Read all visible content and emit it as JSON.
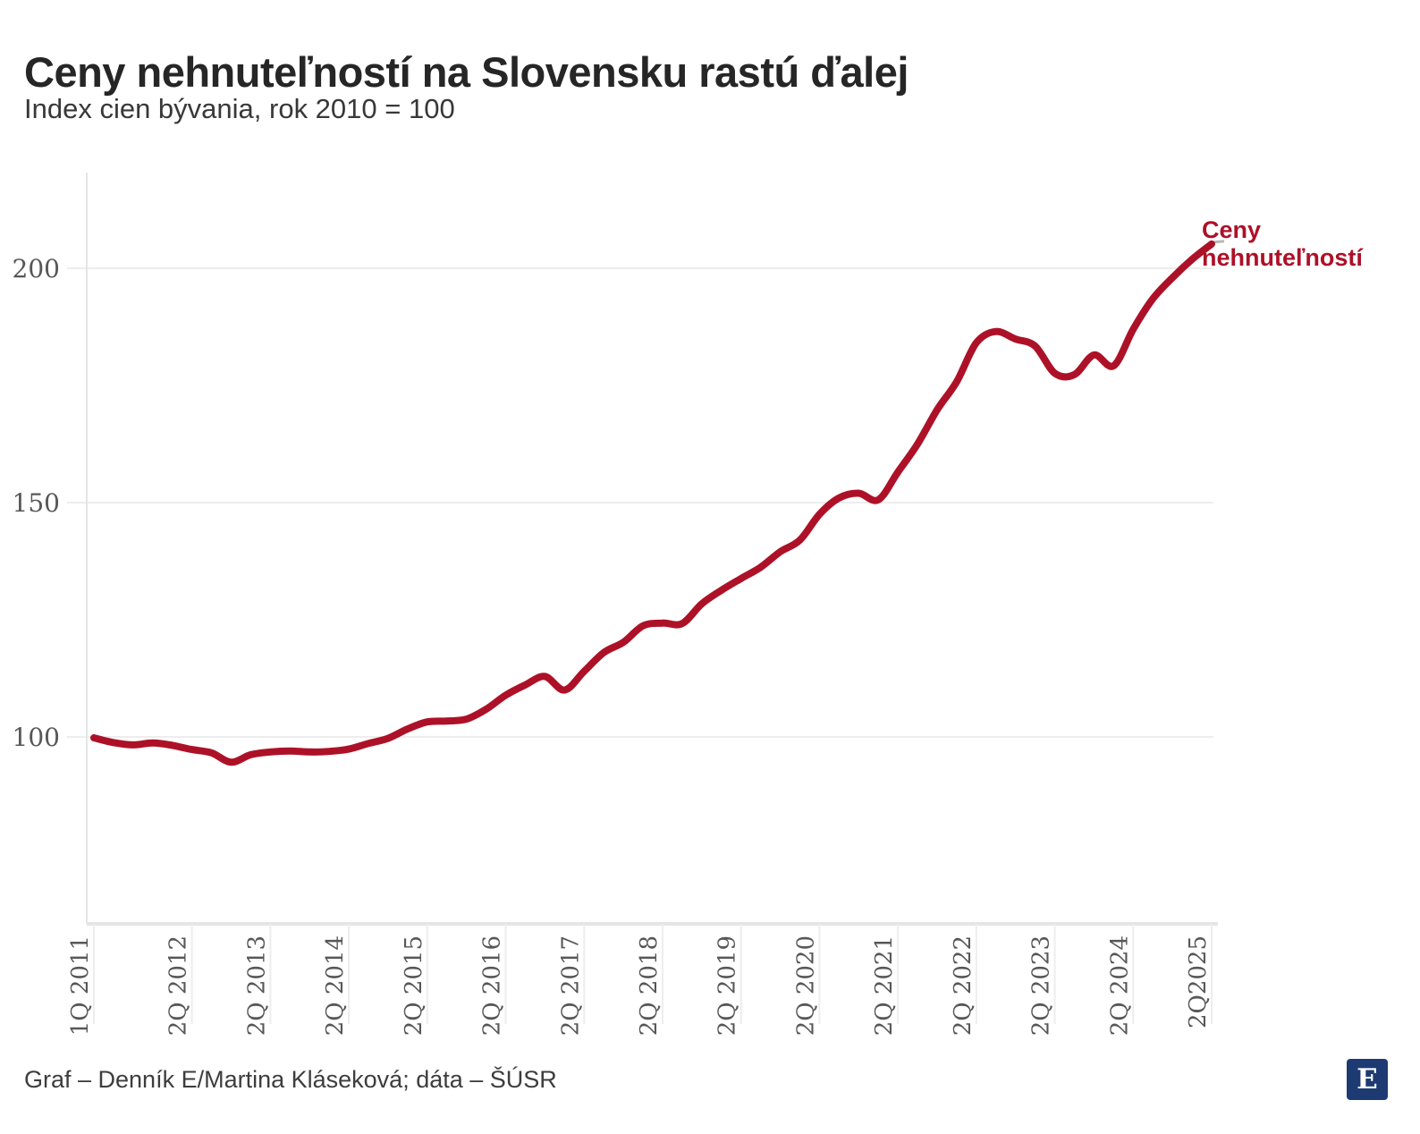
{
  "header": {
    "title": "Ceny nehnuteľností na Slovensku rastú ďalej",
    "subtitle": "Index cien bývania, rok 2010 = 100"
  },
  "annotation": {
    "line1": "Ceny",
    "line2": "nehnuteľností"
  },
  "chart_data": {
    "type": "line",
    "title": "Ceny nehnuteľností na Slovensku rastú ďalej",
    "subtitle": "Index cien bývania, rok 2010 = 100",
    "series_label": "Ceny nehnuteľností",
    "x": [
      "1Q 2011",
      "2Q 2011",
      "3Q 2011",
      "4Q 2011",
      "1Q 2012",
      "2Q 2012",
      "3Q 2012",
      "4Q 2012",
      "1Q 2013",
      "2Q 2013",
      "3Q 2013",
      "4Q 2013",
      "1Q 2014",
      "2Q 2014",
      "3Q 2014",
      "4Q 2014",
      "1Q 2015",
      "2Q 2015",
      "3Q 2015",
      "4Q 2015",
      "1Q 2016",
      "2Q 2016",
      "3Q 2016",
      "4Q 2016",
      "1Q 2017",
      "2Q 2017",
      "3Q 2017",
      "4Q 2017",
      "1Q 2018",
      "2Q 2018",
      "3Q 2018",
      "4Q 2018",
      "1Q 2019",
      "2Q 2019",
      "3Q 2019",
      "4Q 2019",
      "1Q 2020",
      "2Q 2020",
      "3Q 2020",
      "4Q 2020",
      "1Q 2021",
      "2Q 2021",
      "3Q 2021",
      "4Q 2021",
      "1Q 2022",
      "2Q 2022",
      "3Q 2022",
      "4Q 2022",
      "1Q 2023",
      "2Q 2023",
      "3Q 2023",
      "4Q 2023",
      "1Q 2024",
      "2Q 2024",
      "3Q 2024",
      "4Q 2024",
      "1Q 2025",
      "2Q 2025"
    ],
    "values": [
      99.8,
      98.8,
      98.3,
      98.7,
      98.2,
      97.3,
      96.6,
      94.6,
      96.2,
      96.8,
      97.0,
      96.8,
      96.9,
      97.4,
      98.6,
      99.7,
      101.7,
      103.2,
      103.4,
      103.8,
      105.9,
      108.9,
      111.1,
      112.9,
      110.0,
      114.0,
      118.0,
      120.2,
      123.7,
      124.3,
      124.2,
      128.4,
      131.3,
      133.8,
      136.2,
      139.5,
      142.0,
      147.5,
      151.0,
      152.0,
      150.6,
      156.5,
      162.5,
      169.8,
      175.8,
      184.1,
      186.5,
      184.9,
      183.4,
      177.6,
      177.3,
      181.5,
      179.2,
      187.0,
      193.5,
      198.0,
      201.9,
      205.2
    ],
    "y_ticks": [
      100,
      150,
      200
    ],
    "x_tick_labels": [
      "1Q 2011",
      "2Q 2012",
      "2Q 2013",
      "2Q 2014",
      "2Q 2015",
      "2Q 2016",
      "2Q 2017",
      "2Q 2018",
      "2Q 2019",
      "2Q 2020",
      "2Q 2021",
      "2Q 2022",
      "2Q 2023",
      "2Q 2024",
      "2Q2025"
    ],
    "x_tick_indices": [
      0,
      5,
      9,
      13,
      17,
      21,
      25,
      29,
      33,
      37,
      41,
      45,
      49,
      53,
      57
    ],
    "ylim": [
      60,
      220
    ],
    "grid": true,
    "legend_position": "end-of-line",
    "line_color": "#ad1128"
  },
  "colors": {
    "line": "#ad1128",
    "annotation_text": "#ad1128",
    "grid": "#ededed",
    "axis": "#e5e5e5",
    "tick_label": "#575757",
    "title": "#262626",
    "subtitle": "#383838",
    "logo_background": "#1e3a72"
  },
  "footer": {
    "credit": "Graf – Denník E/Martina Kláseková; dáta – ŠÚSR",
    "logo_letter": "E"
  }
}
